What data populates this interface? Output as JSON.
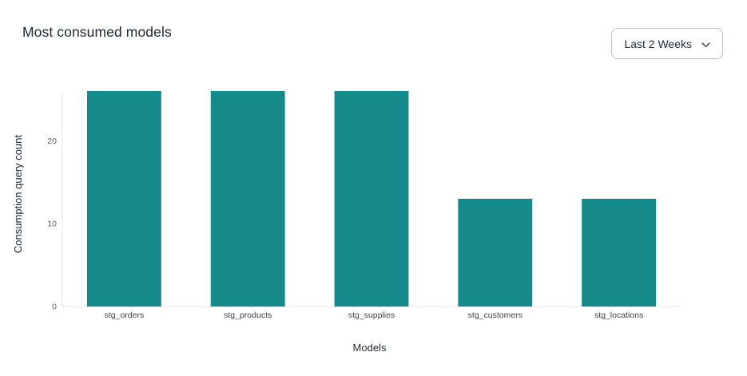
{
  "header": {
    "title": "Most consumed models",
    "time_range_selector": {
      "value": "Last 2 Weeks"
    }
  },
  "colors": {
    "bar": "#168A8B",
    "axis_line": "#e3e6ea",
    "y_tick_label": "#565e6c",
    "x_tick_label": "#3f4550",
    "axis_title": "#1f2733",
    "title_text": "#1e2733",
    "dropdown_border": "#bcc3cd",
    "background": "#ffffff"
  },
  "chart_data": {
    "type": "bar",
    "title": "Most consumed models",
    "categories": [
      "stg_orders",
      "stg_products",
      "stg_supplies",
      "stg_customers",
      "stg_locations"
    ],
    "values": [
      26,
      26,
      26,
      13,
      13
    ],
    "xlabel": "Models",
    "ylabel": "Consumption query count",
    "ylim": [
      0,
      26
    ],
    "yticks": [
      0,
      10,
      20
    ],
    "grid": false,
    "legend": "none",
    "bar_width_ratio": 0.6
  }
}
